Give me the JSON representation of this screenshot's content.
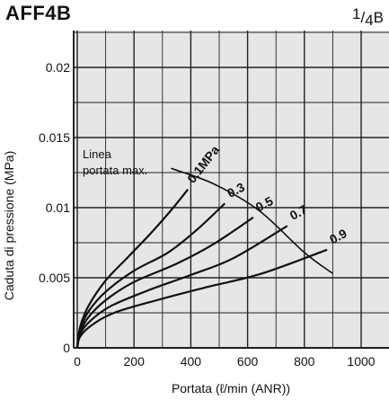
{
  "header": {
    "model": "AFF4B",
    "size_num": "1",
    "size_den": "4",
    "size_unit": "B"
  },
  "chart_data": {
    "type": "line",
    "xlabel": "Portata (ℓ/min (ANR))",
    "ylabel": "Caduta di pressione (MPa)",
    "xlim": [
      0,
      1000
    ],
    "ylim": [
      0,
      0.022
    ],
    "x_ticks": [
      "0",
      "200",
      "400",
      "600",
      "800",
      "1000"
    ],
    "y_ticks": [
      "0",
      "0.005",
      "0.01",
      "0.015",
      "0.02"
    ],
    "grid": true,
    "series": [
      {
        "name": "0.1MPa",
        "x": [
          0,
          10,
          40,
          100,
          180,
          260,
          330,
          390
        ],
        "y": [
          0,
          0.0015,
          0.003,
          0.0048,
          0.0065,
          0.0082,
          0.0098,
          0.0113
        ]
      },
      {
        "name": "0.3",
        "x": [
          0,
          10,
          40,
          100,
          200,
          320,
          420,
          520
        ],
        "y": [
          0,
          0.0013,
          0.0026,
          0.004,
          0.0055,
          0.0068,
          0.0084,
          0.0103
        ]
      },
      {
        "name": "0.5",
        "x": [
          0,
          10,
          40,
          100,
          200,
          350,
          480,
          620
        ],
        "y": [
          0,
          0.0011,
          0.0022,
          0.0034,
          0.0047,
          0.006,
          0.0074,
          0.0093
        ]
      },
      {
        "name": "0.7",
        "x": [
          0,
          10,
          50,
          120,
          250,
          400,
          550,
          740
        ],
        "y": [
          0,
          0.001,
          0.002,
          0.003,
          0.0041,
          0.0052,
          0.0064,
          0.0087
        ]
      },
      {
        "name": "0.9",
        "x": [
          0,
          10,
          50,
          130,
          280,
          450,
          650,
          880
        ],
        "y": [
          0,
          0.0008,
          0.0016,
          0.0025,
          0.0034,
          0.0043,
          0.0053,
          0.007
        ]
      }
    ],
    "max_flow_line": {
      "label_line1": "Linea",
      "label_line2": "portata max.",
      "x": [
        330,
        480,
        640,
        800,
        900
      ],
      "y": [
        0.0128,
        0.0117,
        0.0098,
        0.0068,
        0.0053
      ]
    }
  }
}
